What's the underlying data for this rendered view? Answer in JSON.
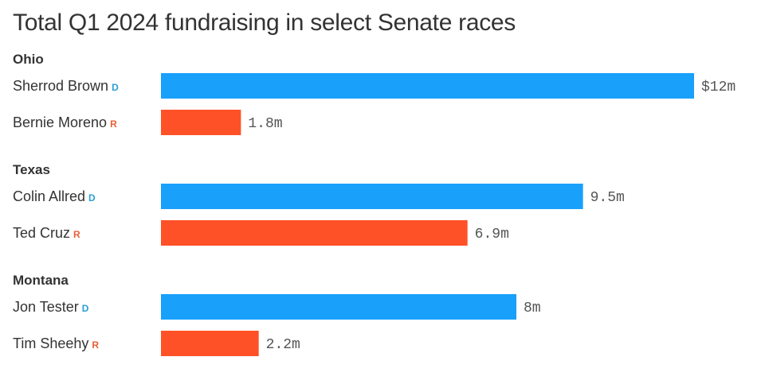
{
  "title": "Total Q1 2024 fundraising in select Senate races",
  "colors": {
    "D": "#18a0fb",
    "R": "#ff5127",
    "party_D_text": "#2a9fd8",
    "party_R_text": "#e8603a"
  },
  "chart_data": {
    "type": "bar",
    "orientation": "horizontal",
    "title": "Total Q1 2024 fundraising in select Senate races",
    "unit": "millions USD",
    "xlim": [
      0,
      12
    ],
    "grid": false,
    "groups": [
      {
        "name": "Ohio",
        "candidates": [
          {
            "name": "Sherrod Brown",
            "party": "D",
            "value": 12,
            "label": "$12m"
          },
          {
            "name": "Bernie Moreno",
            "party": "R",
            "value": 1.8,
            "label": "1.8m"
          }
        ]
      },
      {
        "name": "Texas",
        "candidates": [
          {
            "name": "Colin Allred",
            "party": "D",
            "value": 9.5,
            "label": "9.5m"
          },
          {
            "name": "Ted Cruz",
            "party": "R",
            "value": 6.9,
            "label": "6.9m"
          }
        ]
      },
      {
        "name": "Montana",
        "candidates": [
          {
            "name": "Jon Tester",
            "party": "D",
            "value": 8,
            "label": "8m"
          },
          {
            "name": "Tim Sheehy",
            "party": "R",
            "value": 2.2,
            "label": "2.2m"
          }
        ]
      }
    ]
  }
}
